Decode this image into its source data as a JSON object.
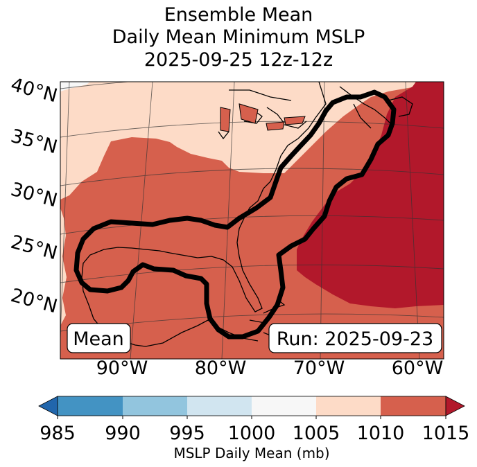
{
  "title": {
    "line1": "Ensemble Mean",
    "line2": "Daily Mean Minimum MSLP",
    "line3": "2025-09-25 12z-12z"
  },
  "map": {
    "lat_labels": [
      "40°N",
      "35°N",
      "30°N",
      "25°N",
      "20°N"
    ],
    "lon_labels": [
      "90°W",
      "80°W",
      "70°W",
      "60°W"
    ],
    "mean_label": "Mean",
    "run_label": "Run: 2025-09-23",
    "fill_colors": {
      "1005_1010": "#fddbc7",
      "1010_1015": "#d6604d",
      "above_1015": "#b2182b",
      "1000_1005": "#f7f7f7"
    },
    "contour_color": "#000000"
  },
  "colorbar": {
    "label": "MSLP Daily Mean (mb)",
    "ticks": [
      "985",
      "990",
      "995",
      "1000",
      "1005",
      "1010",
      "1015"
    ],
    "colors": [
      "#2166ac",
      "#4393c3",
      "#92c5de",
      "#d1e5f0",
      "#f7f7f7",
      "#fddbc7",
      "#d6604d",
      "#b2182b"
    ]
  }
}
